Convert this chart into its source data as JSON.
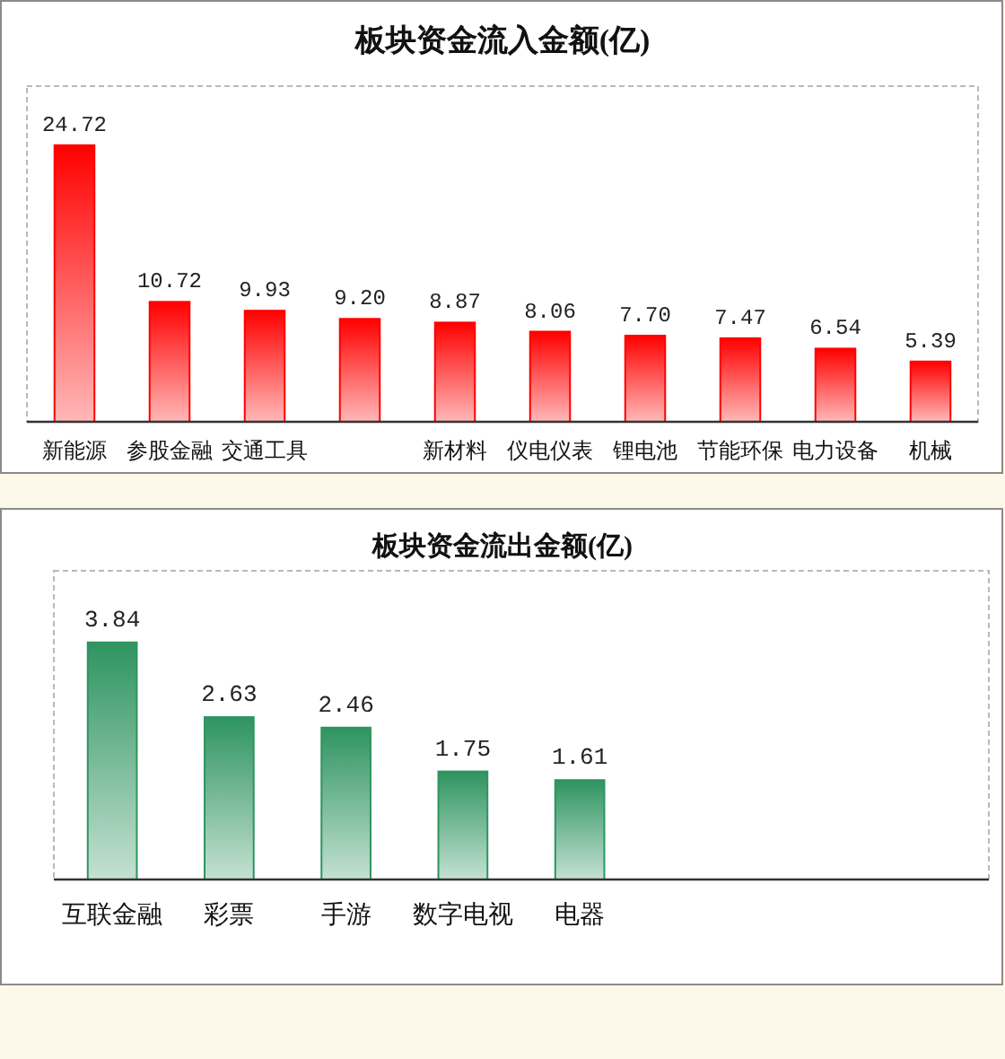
{
  "chart_data": [
    {
      "type": "bar",
      "title": "板块资金流入金额(亿)",
      "categories": [
        "新能源",
        "参股金融",
        "交通工具",
        null,
        "新材料",
        "仪电仪表",
        "锂电池",
        "节能环保",
        "电力设备",
        "机械"
      ],
      "values": [
        24.72,
        10.72,
        9.93,
        9.2,
        8.87,
        8.06,
        7.7,
        7.47,
        6.54,
        5.39
      ],
      "value_labels": [
        "24.72",
        "10.72",
        "9.93",
        "9.20",
        "8.87",
        "8.06",
        "7.70",
        "7.47",
        "6.54",
        "5.39"
      ],
      "color": "#ff0000"
    },
    {
      "type": "bar",
      "title": "板块资金流出金额(亿)",
      "categories": [
        "互联金融",
        "彩票",
        "手游",
        "数字电视",
        "电器",
        null,
        null,
        null
      ],
      "values": [
        3.84,
        2.63,
        2.46,
        1.75,
        1.61,
        null,
        null,
        null
      ],
      "value_labels": [
        "3.84",
        "2.63",
        "2.46",
        "1.75",
        "1.61",
        null,
        null,
        null
      ],
      "color": "#2e9460"
    }
  ]
}
